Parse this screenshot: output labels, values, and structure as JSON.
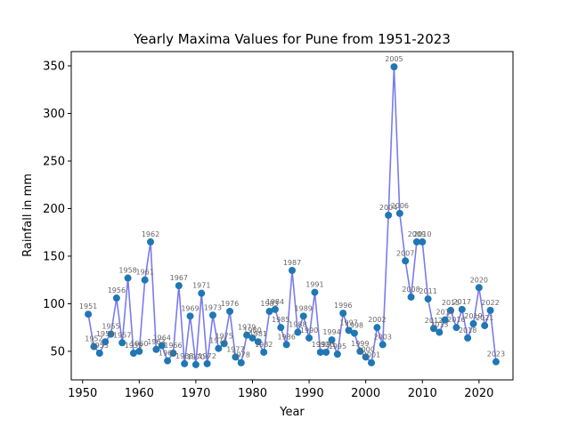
{
  "chart_data": {
    "type": "line",
    "title": "Yearly Maxima Values for Pune from 1951-2023",
    "xlabel": "Year",
    "ylabel": "Rainfall in mm",
    "xlim": [
      1948,
      2026
    ],
    "ylim": [
      20,
      365
    ],
    "xticks": [
      1950,
      1960,
      1970,
      1980,
      1990,
      2000,
      2010,
      2020
    ],
    "yticks": [
      50,
      100,
      150,
      200,
      250,
      300,
      350
    ],
    "line_color": "#7b7bef",
    "marker_color": "#1f77b4",
    "grid": false,
    "legend": "none",
    "series": [
      {
        "x": [
          1951,
          1952,
          1953,
          1954,
          1955,
          1956,
          1957,
          1958,
          1959,
          1960,
          1961,
          1962,
          1963,
          1964,
          1965,
          1966,
          1967,
          1968,
          1969,
          1970,
          1971,
          1972,
          1973,
          1974,
          1975,
          1976,
          1977,
          1978,
          1979,
          1980,
          1981,
          1982,
          1983,
          1984,
          1985,
          1986,
          1987,
          1988,
          1989,
          1990,
          1991,
          1992,
          1993,
          1994,
          1995,
          1996,
          1997,
          1998,
          1999,
          2000,
          2001,
          2002,
          2003,
          2004,
          2005,
          2006,
          2007,
          2008,
          2009,
          2010,
          2011,
          2012,
          2013,
          2014,
          2015,
          2016,
          2017,
          2018,
          2019,
          2020,
          2021,
          2022,
          2023
        ],
        "values": [
          89,
          55,
          48,
          60,
          68,
          106,
          59,
          127,
          48,
          50,
          125,
          165,
          52,
          56,
          40,
          48,
          119,
          37,
          87,
          36,
          111,
          37,
          88,
          53,
          58,
          92,
          44,
          38,
          67,
          64,
          60,
          49,
          92,
          94,
          75,
          57,
          135,
          70,
          87,
          64,
          112,
          49,
          49,
          62,
          47,
          90,
          72,
          69,
          50,
          44,
          38,
          75,
          57,
          193,
          349,
          195,
          145,
          107,
          165,
          165,
          105,
          74,
          70,
          83,
          93,
          75,
          94,
          64,
          79,
          117,
          77,
          93,
          39
        ]
      }
    ]
  }
}
